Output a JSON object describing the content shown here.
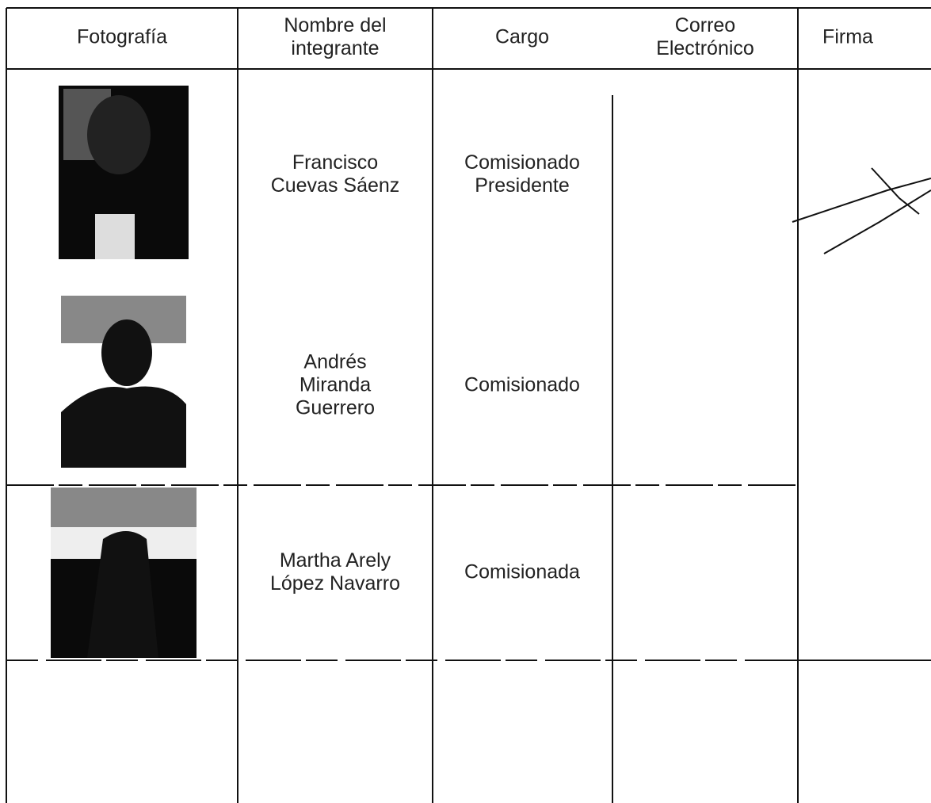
{
  "table": {
    "headers": [
      "Fotografía",
      "Nombre del integrante",
      "Cargo",
      "Correo Electrónico",
      "Firma"
    ],
    "rows": [
      {
        "name": "Francisco Cuevas Sáenz",
        "role": "Comisionado Presidente"
      },
      {
        "name": "Andrés Miranda Guerrero",
        "role": "Comisionado"
      },
      {
        "name": "Martha Arely López Navarro",
        "role": "Comisionada"
      }
    ]
  }
}
